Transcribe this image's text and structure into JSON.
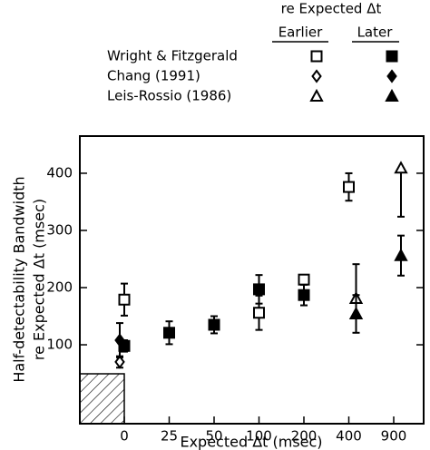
{
  "chart_data": {
    "type": "scatter",
    "legend_title": "re Expected Δt",
    "legend_columns": [
      "Earlier",
      "Later"
    ],
    "xlabel": "Expected Δt (msec)",
    "ylabel": [
      "Half-detectability Bandwidth",
      "re Expected Δt (msec)"
    ],
    "categories": [
      "0",
      "25",
      "50",
      "100",
      "200",
      "400",
      "900"
    ],
    "ylim": [
      -38,
      465
    ],
    "yticks": [
      100,
      200,
      300,
      400
    ],
    "color": "#000000",
    "series": [
      {
        "name": "Wright & Fitzgerald",
        "marker": "square",
        "earlier": {
          "values": [
            179,
            null,
            null,
            156,
            214,
            376,
            null
          ],
          "err_low": [
            28,
            null,
            null,
            30,
            8,
            24,
            null
          ],
          "err_high": [
            28,
            null,
            null,
            30,
            8,
            24,
            null
          ]
        },
        "later": {
          "values": [
            98,
            121,
            135,
            197,
            187,
            null,
            null
          ],
          "err_low": [
            10,
            20,
            15,
            25,
            18,
            null,
            null
          ],
          "err_high": [
            10,
            20,
            15,
            25,
            18,
            null,
            null
          ]
        }
      },
      {
        "name": "Chang (1991)",
        "marker": "diamond",
        "earlier": {
          "values": [
            70,
            null,
            null,
            null,
            null,
            null,
            null
          ],
          "err_low": [
            10,
            null,
            null,
            null,
            null,
            null,
            null
          ],
          "err_high": [
            10,
            null,
            null,
            null,
            null,
            null,
            null
          ]
        },
        "later": {
          "values": [
            108,
            null,
            null,
            null,
            null,
            null,
            null
          ],
          "err_low": [
            30,
            null,
            null,
            null,
            null,
            null,
            null
          ],
          "err_high": [
            30,
            null,
            null,
            null,
            null,
            null,
            null
          ]
        }
      },
      {
        "name": "Leis-Rossio (1986)",
        "marker": "triangle",
        "earlier": {
          "values": [
            null,
            null,
            null,
            null,
            null,
            181,
            409
          ],
          "err_low": [
            null,
            null,
            null,
            null,
            null,
            0,
            85
          ],
          "err_high": [
            null,
            null,
            null,
            null,
            null,
            60,
            0
          ]
        },
        "later": {
          "values": [
            null,
            null,
            null,
            null,
            null,
            154,
            256
          ],
          "err_low": [
            null,
            null,
            null,
            null,
            null,
            33,
            35
          ],
          "err_high": [
            null,
            null,
            null,
            null,
            null,
            33,
            35
          ]
        }
      }
    ]
  }
}
